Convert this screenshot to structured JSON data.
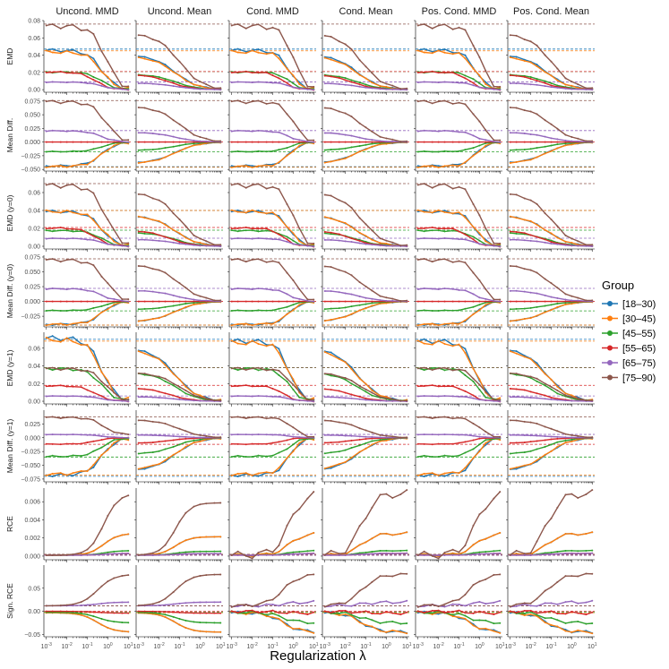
{
  "chart_data": {
    "type": "line",
    "title": "",
    "xlabel": "Regularization λ",
    "x_scale": "log10",
    "x": [
      0.001,
      0.002,
      0.005,
      0.01,
      0.02,
      0.05,
      0.1,
      0.2,
      0.5,
      1,
      2,
      5,
      10
    ],
    "x_tick_labels": [
      "10^-3",
      "10^-2",
      "10^-1",
      "10^0",
      "10^1"
    ],
    "x_tick_values": [
      0.001,
      0.01,
      0.1,
      1,
      10
    ],
    "columns": [
      "Uncond. MMD",
      "Uncond. Mean",
      "Cond. MMD",
      "Cond. Mean",
      "Pos. Cond. MMD",
      "Pos. Cond. Mean"
    ],
    "legend": {
      "title": "Group",
      "placement": "right",
      "entries": [
        {
          "name": "[18–30)",
          "color": "#1f77b4"
        },
        {
          "name": "[30–45)",
          "color": "#ff7f0e"
        },
        {
          "name": "[45–55)",
          "color": "#2ca02c"
        },
        {
          "name": "[55–65)",
          "color": "#d62728"
        },
        {
          "name": "[65–75)",
          "color": "#9467bd"
        },
        {
          "name": "[75–90)",
          "color": "#8c564b"
        }
      ]
    },
    "rows": [
      {
        "label": "EMD",
        "ylim": [
          -0.003,
          0.08
        ],
        "ticks": [
          0.0,
          0.02,
          0.04,
          0.06,
          0.08
        ],
        "tick_labels": [
          "0.00",
          "0.02",
          "0.04",
          "0.06",
          "0.08"
        ],
        "baselines": [
          0.047,
          0.045,
          0.021,
          0.021,
          0.009,
          0.076
        ]
      },
      {
        "label": "Mean Diff.",
        "ylim": [
          -0.053,
          0.078
        ],
        "ticks": [
          -0.05,
          -0.025,
          0.0,
          0.025,
          0.05,
          0.075
        ],
        "tick_labels": [
          "−0.050",
          "−0.025",
          "0.000",
          "0.025",
          "0.050",
          "0.075"
        ],
        "baselines": [
          -0.045,
          -0.046,
          -0.018,
          0.0,
          0.021,
          0.076
        ]
      },
      {
        "label": "EMD (y=0)",
        "ylim": [
          -0.003,
          0.077
        ],
        "ticks": [
          0.0,
          0.02,
          0.04,
          0.06
        ],
        "tick_labels": [
          "0.00",
          "0.02",
          "0.04",
          "0.06"
        ],
        "baselines": [
          0.04,
          0.04,
          0.018,
          0.021,
          0.009,
          0.07
        ]
      },
      {
        "label": "Mean Diff. (y=0)",
        "ylim": [
          -0.043,
          0.078
        ],
        "ticks": [
          -0.025,
          0.0,
          0.025,
          0.05,
          0.075
        ],
        "tick_labels": [
          "−0.025",
          "0.000",
          "0.025",
          "0.050",
          "0.075"
        ],
        "baselines": [
          -0.04,
          -0.04,
          -0.016,
          0.0,
          0.022,
          0.072
        ]
      },
      {
        "label": "EMD (y=1)",
        "ylim": [
          -0.003,
          0.078
        ],
        "ticks": [
          0.0,
          0.02,
          0.04,
          0.06
        ],
        "tick_labels": [
          "0.00",
          "0.02",
          "0.04",
          "0.06"
        ],
        "baselines": [
          0.07,
          0.068,
          0.038,
          0.018,
          0.006,
          0.038
        ]
      },
      {
        "label": "Mean Diff. (y=1)",
        "ylim": [
          -0.08,
          0.05
        ],
        "ticks": [
          -0.075,
          -0.05,
          -0.025,
          0.0,
          0.025
        ],
        "tick_labels": [
          "−0.075",
          "−0.050",
          "−0.025",
          "0.000",
          "0.025"
        ],
        "baselines": [
          -0.07,
          -0.068,
          -0.035,
          -0.012,
          0.006,
          0.038
        ]
      },
      {
        "label": "RCE",
        "ylim": [
          -0.0004,
          0.0075
        ],
        "ticks": [
          0.0,
          0.002,
          0.004,
          0.006
        ],
        "tick_labels": [
          "0.000",
          "0.002",
          "0.004",
          "0.006"
        ],
        "baselines": [
          0.0002,
          0.0002,
          0.0001,
          0.0001,
          0.0001,
          0.0002
        ]
      },
      {
        "label": "Sign. RCE",
        "ylim": [
          -0.055,
          0.1
        ],
        "ticks": [
          -0.05,
          0.0,
          0.05
        ],
        "tick_labels": [
          "−0.05",
          "0.00",
          "0.05"
        ],
        "baselines": [
          -0.003,
          -0.003,
          -0.002,
          0.0,
          0.012,
          0.012
        ]
      }
    ]
  }
}
